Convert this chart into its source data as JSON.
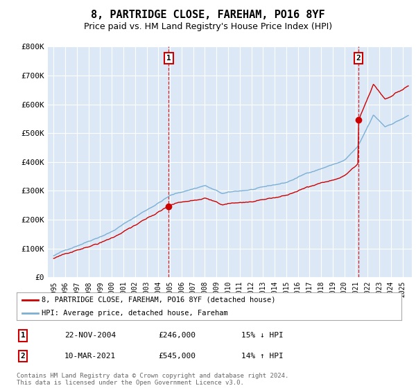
{
  "title": "8, PARTRIDGE CLOSE, FAREHAM, PO16 8YF",
  "subtitle": "Price paid vs. HM Land Registry's House Price Index (HPI)",
  "ylim": [
    0,
    800000
  ],
  "yticks": [
    0,
    100000,
    200000,
    300000,
    400000,
    500000,
    600000,
    700000,
    800000
  ],
  "ytick_labels": [
    "£0",
    "£100K",
    "£200K",
    "£300K",
    "£400K",
    "£500K",
    "£600K",
    "£700K",
    "£800K"
  ],
  "sale1_date": 2004.9,
  "sale1_price": 246000,
  "sale2_date": 2021.19,
  "sale2_price": 545000,
  "hpi_color": "#7bafd4",
  "property_color": "#cc0000",
  "dashed_color": "#cc0000",
  "background_color": "#ffffff",
  "plot_bg_color": "#dce8f5",
  "grid_color": "#ffffff",
  "legend_label_property": "8, PARTRIDGE CLOSE, FAREHAM, PO16 8YF (detached house)",
  "legend_label_hpi": "HPI: Average price, detached house, Fareham",
  "table_row1": [
    "1",
    "22-NOV-2004",
    "£246,000",
    "15% ↓ HPI"
  ],
  "table_row2": [
    "2",
    "10-MAR-2021",
    "£545,000",
    "14% ↑ HPI"
  ],
  "footer": "Contains HM Land Registry data © Crown copyright and database right 2024.\nThis data is licensed under the Open Government Licence v3.0.",
  "title_fontsize": 11,
  "subtitle_fontsize": 9
}
